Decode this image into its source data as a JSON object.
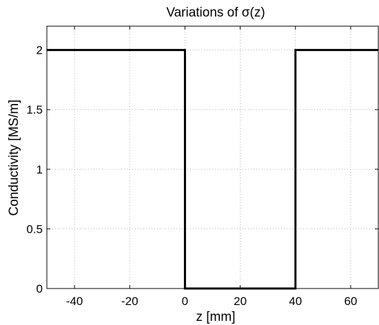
{
  "chart_data": {
    "type": "line",
    "title": "Variations of σ(z)",
    "xlabel": "z [mm]",
    "ylabel": "Conductivity [MS/m]",
    "xlim": [
      -50,
      70
    ],
    "ylim": [
      0,
      2.2
    ],
    "xticks": [
      -40,
      -20,
      0,
      20,
      40,
      60
    ],
    "xtick_labels": [
      "-40",
      "-20",
      "0",
      "20",
      "40",
      "60"
    ],
    "yticks": [
      0,
      0.5,
      1,
      1.5,
      2
    ],
    "ytick_labels": [
      "0",
      "0.5",
      "1",
      "1.5",
      "2"
    ],
    "grid": true,
    "series": [
      {
        "color": "#000000",
        "x": [
          -50,
          0,
          0,
          40,
          40,
          70
        ],
        "y": [
          2,
          2,
          0,
          0,
          2,
          2
        ]
      }
    ]
  }
}
